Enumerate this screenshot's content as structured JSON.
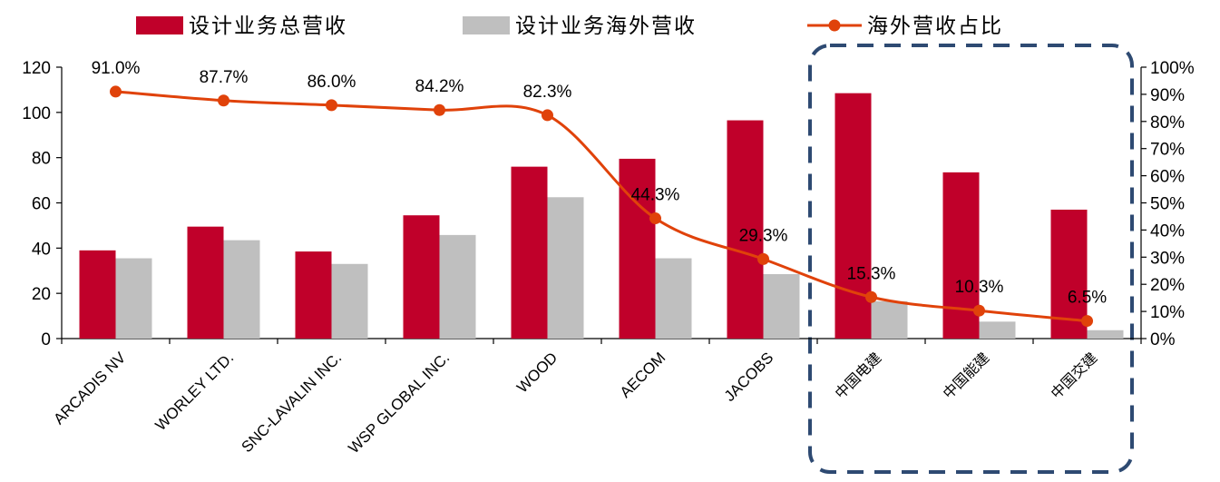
{
  "chart_data": {
    "type": "bar",
    "categories": [
      "ARCADIS NV",
      "WORLEY LTD.",
      "SNC-LAVALIN INC.",
      "WSP GLOBAL INC.",
      "WOOD",
      "AECOM",
      "JACOBS",
      "中国电建",
      "中国能建",
      "中国交建"
    ],
    "series": [
      {
        "name": "设计业务总营收",
        "type": "bar",
        "axis": "left",
        "color": "#c0002a",
        "values": [
          39,
          49.5,
          38.5,
          54.5,
          76,
          79.5,
          96.5,
          108.5,
          73.5,
          57
        ]
      },
      {
        "name": "设计业务海外营收",
        "type": "bar",
        "axis": "left",
        "color": "#bfbfbf",
        "values": [
          35.5,
          43.5,
          33,
          45.8,
          62.5,
          35.5,
          28.5,
          16.5,
          7.5,
          3.7
        ]
      },
      {
        "name": "海外营收占比",
        "type": "line",
        "axis": "right",
        "color": "#e0420a",
        "values": [
          91.0,
          87.7,
          86.0,
          84.2,
          82.3,
          44.3,
          29.3,
          15.3,
          10.3,
          6.5
        ],
        "labels": [
          "91.0%",
          "87.7%",
          "86.0%",
          "84.2%",
          "82.3%",
          "44.3%",
          "29.3%",
          "15.3%",
          "10.3%",
          "6.5%"
        ]
      }
    ],
    "y_left": {
      "min": 0,
      "max": 120,
      "ticks": [
        "0",
        "20",
        "40",
        "60",
        "80",
        "100",
        "120"
      ]
    },
    "y_right": {
      "min": 0,
      "max": 100,
      "ticks": [
        "0%",
        "10%",
        "20%",
        "30%",
        "40%",
        "50%",
        "60%",
        "70%",
        "80%",
        "90%",
        "100%"
      ]
    },
    "legend": {
      "position": "top",
      "items": [
        "设计业务总营收",
        "设计业务海外营收",
        "海外营收占比"
      ]
    },
    "highlight_box": {
      "first_category": "中国电建",
      "last_category": "中国交建",
      "color": "#2e4a72",
      "style": "dashed"
    },
    "grid": false
  }
}
